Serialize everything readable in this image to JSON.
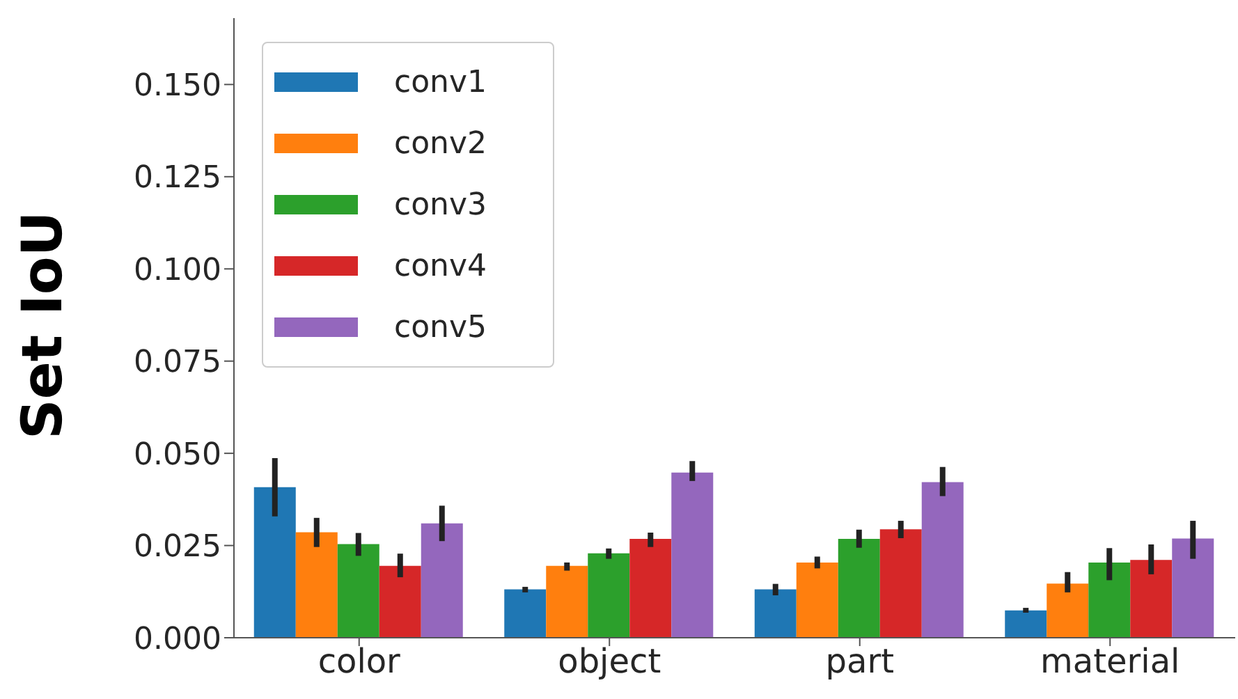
{
  "chart_data": {
    "type": "bar",
    "ylabel": "Set IoU",
    "categories": [
      "color",
      "object",
      "part",
      "material"
    ],
    "series": [
      {
        "name": "conv1",
        "color": "#1f77b4",
        "values": [
          0.0408,
          0.0131,
          0.0131,
          0.0074
        ],
        "errors": [
          [
            0.0329,
            0.0487
          ],
          [
            0.0123,
            0.0138
          ],
          [
            0.0115,
            0.0146
          ],
          [
            0.0068,
            0.0081
          ]
        ]
      },
      {
        "name": "conv2",
        "color": "#ff7f0e",
        "values": [
          0.0286,
          0.0195,
          0.0204,
          0.0147
        ],
        "errors": [
          [
            0.0246,
            0.0325
          ],
          [
            0.0182,
            0.0204
          ],
          [
            0.0188,
            0.022
          ],
          [
            0.0123,
            0.0178
          ]
        ]
      },
      {
        "name": "conv3",
        "color": "#2ca02c",
        "values": [
          0.0254,
          0.0229,
          0.0268,
          0.0204
        ],
        "errors": [
          [
            0.0222,
            0.0284
          ],
          [
            0.0214,
            0.0242
          ],
          [
            0.0244,
            0.0293
          ],
          [
            0.0156,
            0.0243
          ]
        ]
      },
      {
        "name": "conv4",
        "color": "#d62728",
        "values": [
          0.0195,
          0.0268,
          0.0294,
          0.0211
        ],
        "errors": [
          [
            0.0164,
            0.0228
          ],
          [
            0.0246,
            0.0285
          ],
          [
            0.027,
            0.0317
          ],
          [
            0.0172,
            0.0253
          ]
        ]
      },
      {
        "name": "conv5",
        "color": "#9467bd",
        "values": [
          0.031,
          0.0448,
          0.0422,
          0.0269
        ],
        "errors": [
          [
            0.0262,
            0.0358
          ],
          [
            0.0425,
            0.0479
          ],
          [
            0.0384,
            0.0463
          ],
          [
            0.0214,
            0.0317
          ]
        ]
      }
    ],
    "ylim": [
      0,
      0.168
    ],
    "yticks": [
      {
        "value": 0,
        "label": "0.000"
      },
      0.025,
      {
        "value": 0.05,
        "label": "0.050"
      },
      0.075,
      {
        "value": 0.1,
        "label": "0.100"
      },
      0.125,
      {
        "value": 0.15,
        "label": "0.150"
      }
    ],
    "grid": false,
    "legend": "top left"
  }
}
